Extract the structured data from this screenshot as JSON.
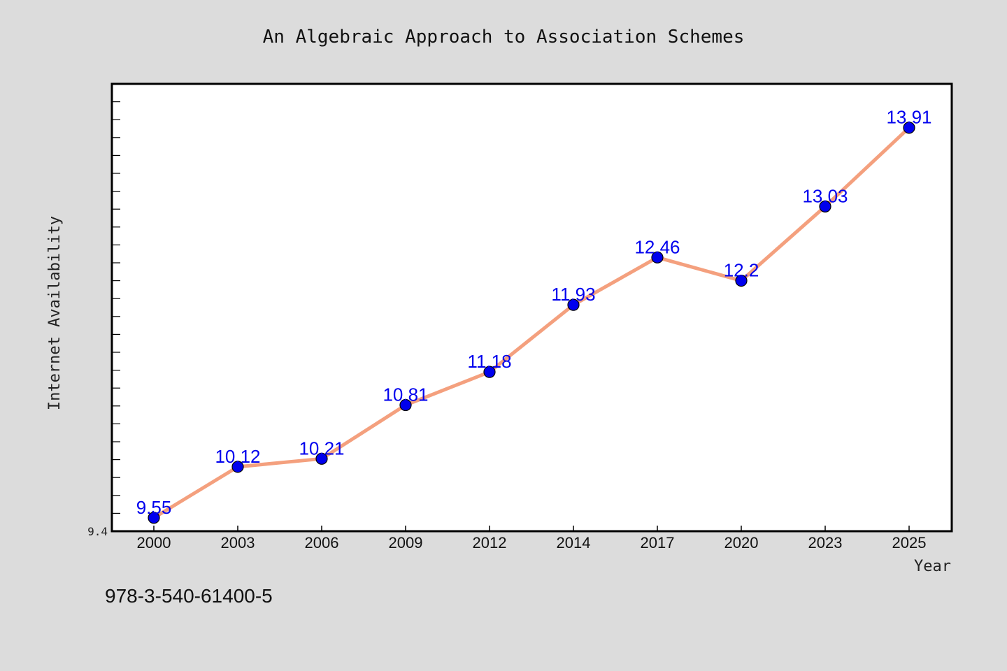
{
  "colors": {
    "background": "#dcdcdc",
    "plot_background": "#ffffff",
    "line": "#f4a07e",
    "marker": "#0000ee",
    "data_label": "#0000ee"
  },
  "footer_text": "978-3-540-61400-5",
  "chart_data": {
    "type": "line",
    "title": "An Algebraic Approach to Association Schemes",
    "xlabel": "Year",
    "ylabel": "Internet Availability",
    "categories": [
      "2000",
      "2003",
      "2006",
      "2009",
      "2012",
      "2014",
      "2017",
      "2020",
      "2023",
      "2025"
    ],
    "series": [
      {
        "values": [
          9.55,
          10.12,
          10.21,
          10.81,
          11.18,
          11.93,
          12.46,
          12.2,
          13.03,
          13.91
        ],
        "labels": [
          "9.55",
          "10.12",
          "10.21",
          "10.81",
          "11.18",
          "11.93",
          "12.46",
          "12.2",
          "13.03",
          "13.91"
        ]
      }
    ],
    "ylim": [
      9.4,
      14.4
    ],
    "y_tick_labels": [
      "9.4"
    ],
    "grid": false,
    "legend": "none"
  }
}
